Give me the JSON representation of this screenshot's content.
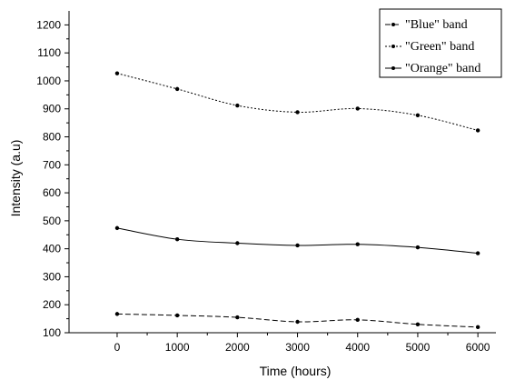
{
  "chart_data": {
    "type": "line",
    "xlabel": "Time (hours)",
    "ylabel": "Intensity (a.u)",
    "x": [
      0,
      1000,
      2000,
      3000,
      4000,
      5000,
      6000
    ],
    "xlim": [
      -800,
      6300
    ],
    "ylim": [
      100,
      1250
    ],
    "xticks": [
      0,
      1000,
      2000,
      3000,
      4000,
      5000,
      6000
    ],
    "yticks": [
      100,
      200,
      300,
      400,
      500,
      600,
      700,
      800,
      900,
      1000,
      1100,
      1200
    ],
    "grid": false,
    "legend_position": "top-right",
    "series": [
      {
        "name": "\"Blue\" band",
        "line_style": "dashed",
        "values": [
          167,
          162,
          155,
          139,
          146,
          130,
          120
        ]
      },
      {
        "name": "\"Green\" band",
        "line_style": "dotted-fine",
        "values": [
          1027,
          971,
          912,
          888,
          901,
          877,
          823
        ]
      },
      {
        "name": "\"Orange\" band",
        "line_style": "solid",
        "values": [
          474,
          434,
          420,
          412,
          416,
          405,
          384
        ]
      }
    ]
  }
}
